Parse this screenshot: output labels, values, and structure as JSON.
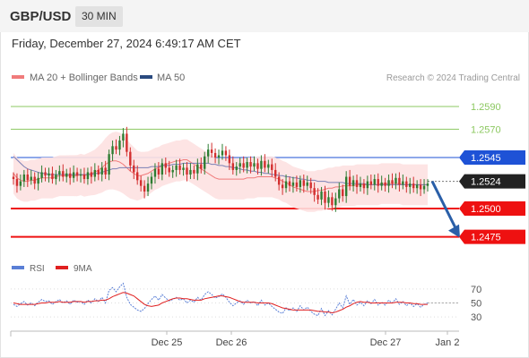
{
  "header": {
    "symbol": "GBP/USD",
    "timeframe": "30 MIN",
    "datetime": "Friday, December 27, 2024 6:49:17 AM CET"
  },
  "legend": {
    "ma20_label": "MA 20 + Bollinger Bands",
    "ma50_label": "MA 50",
    "credit": "Research © 2024 Trading Central",
    "ma20_color": "#f07b7b",
    "ma50_color": "#2a4a7f"
  },
  "rsi_legend": {
    "rsi_label": "RSI",
    "ma_label": "9MA",
    "rsi_color": "#5a7fd6",
    "ma_color": "#e02020"
  },
  "colors": {
    "up_candle": "#2e7d32",
    "down_candle": "#d32f2f",
    "resistance": "#8cc860",
    "pivot": "#1e52d6",
    "support": "#ee1111",
    "current": "#222222",
    "arrow": "#2a5fa8",
    "band_fill": "#fde1e1"
  },
  "chart_data": {
    "type": "candlestick",
    "instrument": "GBP/USD",
    "interval": "30 MIN",
    "ylim": [
      1.2455,
      1.2605
    ],
    "x_ticks": [
      "Dec 25",
      "Dec 26",
      "Dec 27",
      "Jan 2"
    ],
    "levels": [
      {
        "value": 1.259,
        "label": "1.2590",
        "kind": "resistance"
      },
      {
        "value": 1.257,
        "label": "1.2570",
        "kind": "resistance"
      },
      {
        "value": 1.2545,
        "label": "1.2545",
        "kind": "pivot"
      },
      {
        "value": 1.2524,
        "label": "1.2524",
        "kind": "current"
      },
      {
        "value": 1.25,
        "label": "1.2500",
        "kind": "support"
      },
      {
        "value": 1.2475,
        "label": "1.2475",
        "kind": "support"
      }
    ],
    "closes": [
      1.2526,
      1.252,
      1.2524,
      1.253,
      1.2525,
      1.2528,
      1.2522,
      1.2527,
      1.2532,
      1.2529,
      1.2531,
      1.2526,
      1.253,
      1.2533,
      1.2528,
      1.2531,
      1.2527,
      1.2532,
      1.2529,
      1.253,
      1.2526,
      1.2532,
      1.2528,
      1.2534,
      1.253,
      1.2536,
      1.253,
      1.2548,
      1.2555,
      1.2552,
      1.256,
      1.2566,
      1.255,
      1.2538,
      1.2532,
      1.2525,
      1.252,
      1.2515,
      1.2522,
      1.2528,
      1.2535,
      1.253,
      1.254,
      1.2536,
      1.2532,
      1.2534,
      1.2538,
      1.2534,
      1.2536,
      1.253,
      1.2534,
      1.2531,
      1.2539,
      1.2535,
      1.2546,
      1.2552,
      1.2549,
      1.2545,
      1.2547,
      1.2551,
      1.2547,
      1.254,
      1.2534,
      1.2537,
      1.254,
      1.2536,
      1.2541,
      1.2537,
      1.254,
      1.2535,
      1.2542,
      1.2536,
      1.2539,
      1.2534,
      1.2528,
      1.2521,
      1.2518,
      1.2524,
      1.252,
      1.2523,
      1.2519,
      1.2525,
      1.252,
      1.2523,
      1.2518,
      1.2512,
      1.2508,
      1.2515,
      1.2505,
      1.251,
      1.2503,
      1.2509,
      1.2517,
      1.2511,
      1.2528,
      1.252,
      1.2525,
      1.2519,
      1.2522,
      1.2518,
      1.2524,
      1.2521,
      1.2526,
      1.252,
      1.2523,
      1.252,
      1.2525,
      1.2522,
      1.2527,
      1.2521,
      1.2524,
      1.2519,
      1.2522,
      1.2518,
      1.2521,
      1.2517,
      1.252,
      1.2522
    ],
    "ma20": [
      1.2531,
      1.2527,
      1.2525,
      1.2524,
      1.2524,
      1.2525,
      1.2525,
      1.2526,
      1.2527,
      1.2527,
      1.2527,
      1.2527,
      1.2528,
      1.2529,
      1.2529,
      1.2529,
      1.2529,
      1.2529,
      1.2529,
      1.253,
      1.2529,
      1.253,
      1.2531,
      1.2532,
      1.2534,
      1.2536,
      1.2539,
      1.2541,
      1.2542,
      1.2542,
      1.2541,
      1.2539,
      1.2536,
      1.2533,
      1.2531,
      1.2529,
      1.2529,
      1.253,
      1.2531,
      1.2533,
      1.2535,
      1.2536,
      1.2538,
      1.2539,
      1.254,
      1.2541,
      1.2542,
      1.2542,
      1.2543,
      1.2543,
      1.2541,
      1.2539,
      1.2537,
      1.2535,
      1.2533,
      1.2531,
      1.2529,
      1.2527,
      1.2526,
      1.2526,
      1.2526,
      1.2526,
      1.2526,
      1.2526,
      1.2526,
      1.2526,
      1.2527,
      1.2527,
      1.2527,
      1.2528,
      1.2528,
      1.2528,
      1.2528,
      1.2528,
      1.2527,
      1.2526,
      1.2524,
      1.2523,
      1.2521,
      1.2519,
      1.2518,
      1.2517,
      1.2516,
      1.2515,
      1.2515,
      1.2515,
      1.2516,
      1.2516,
      1.2517,
      1.2518,
      1.2518,
      1.2519,
      1.2519,
      1.252,
      1.252,
      1.252,
      1.252,
      1.2521,
      1.2521,
      1.2521,
      1.2521,
      1.2521,
      1.2521,
      1.2521,
      1.2522,
      1.2522,
      1.2522,
      1.2522,
      1.2522,
      1.2522,
      1.2521,
      1.2521,
      1.2521,
      1.2521,
      1.2521,
      1.2521,
      1.2521,
      1.2521
    ],
    "ma50": [
      1.2546,
      1.2543,
      1.254,
      1.2537,
      1.2535,
      1.2534,
      1.2533,
      1.2532,
      1.2531,
      1.2531,
      1.253,
      1.253,
      1.253,
      1.253,
      1.253,
      1.253,
      1.253,
      1.253,
      1.253,
      1.253,
      1.253,
      1.253,
      1.253,
      1.2531,
      1.2531,
      1.2532,
      1.2533,
      1.2534,
      1.2535,
      1.2535,
      1.2536,
      1.2536,
      1.2536,
      1.2536,
      1.2536,
      1.2536,
      1.2536,
      1.2536,
      1.2536,
      1.2537,
      1.2537,
      1.2537,
      1.2538,
      1.2538,
      1.2538,
      1.2539,
      1.2539,
      1.2539,
      1.254,
      1.254,
      1.254,
      1.254,
      1.254,
      1.254,
      1.254,
      1.254,
      1.2539,
      1.2539,
      1.2538,
      1.2538,
      1.2537,
      1.2537,
      1.2536,
      1.2536,
      1.2535,
      1.2534,
      1.2534,
      1.2533,
      1.2533,
      1.2532,
      1.2532,
      1.2531,
      1.2531,
      1.253,
      1.253,
      1.2529,
      1.2529,
      1.2528,
      1.2528,
      1.2527,
      1.2527,
      1.2526,
      1.2526,
      1.2525,
      1.2525,
      1.2525,
      1.2524,
      1.2524,
      1.2524,
      1.2523,
      1.2523,
      1.2523,
      1.2523,
      1.2523,
      1.2522,
      1.2522,
      1.2522,
      1.2522,
      1.2522,
      1.2522,
      1.2521,
      1.2521,
      1.2521,
      1.2521,
      1.2521,
      1.2521,
      1.2521,
      1.2521,
      1.2521,
      1.2521,
      1.2521,
      1.2521,
      1.2521,
      1.2521,
      1.2521,
      1.2521,
      1.2521,
      1.2521
    ],
    "forecast": {
      "from": 1.2524,
      "to": 1.2475
    },
    "rsi_panel": {
      "ylim": [
        20,
        80
      ],
      "ticks": [
        70,
        50,
        30
      ],
      "rsi": [
        48,
        45,
        49,
        52,
        47,
        50,
        46,
        51,
        55,
        52,
        53,
        48,
        52,
        55,
        50,
        53,
        48,
        54,
        51,
        52,
        48,
        54,
        50,
        56,
        52,
        58,
        50,
        68,
        72,
        66,
        73,
        78,
        58,
        48,
        44,
        40,
        38,
        42,
        49,
        55,
        60,
        54,
        62,
        57,
        53,
        55,
        58,
        54,
        56,
        50,
        54,
        51,
        58,
        54,
        62,
        66,
        62,
        57,
        59,
        63,
        58,
        51,
        46,
        50,
        53,
        48,
        54,
        50,
        52,
        46,
        54,
        47,
        50,
        45,
        41,
        37,
        35,
        43,
        39,
        43,
        38,
        46,
        40,
        44,
        38,
        34,
        32,
        42,
        32,
        39,
        33,
        41,
        50,
        43,
        60,
        48,
        55,
        47,
        51,
        46,
        53,
        49,
        55,
        47,
        51,
        47,
        54,
        50,
        56,
        48,
        52,
        46,
        50,
        45,
        49,
        44,
        48,
        50
      ],
      "ma9": [
        50,
        49,
        48,
        48,
        48,
        48,
        48,
        49,
        50,
        50,
        51,
        51,
        51,
        52,
        51,
        51,
        51,
        52,
        52,
        52,
        51,
        52,
        52,
        53,
        53,
        54,
        54,
        56,
        59,
        61,
        63,
        65,
        64,
        62,
        60,
        56,
        52,
        48,
        46,
        45,
        46,
        47,
        50,
        52,
        54,
        56,
        57,
        57,
        56,
        56,
        55,
        54,
        54,
        54,
        56,
        57,
        58,
        59,
        60,
        60,
        59,
        58,
        56,
        54,
        52,
        51,
        51,
        51,
        51,
        50,
        50,
        50,
        50,
        49,
        47,
        45,
        43,
        42,
        41,
        40,
        40,
        40,
        40,
        40,
        40,
        39,
        38,
        38,
        37,
        37,
        36,
        37,
        39,
        41,
        44,
        46,
        49,
        51,
        52,
        51,
        51,
        50,
        50,
        50,
        50,
        50,
        50,
        50,
        51,
        51,
        51,
        50,
        50,
        49,
        49,
        48,
        48,
        48
      ]
    }
  }
}
